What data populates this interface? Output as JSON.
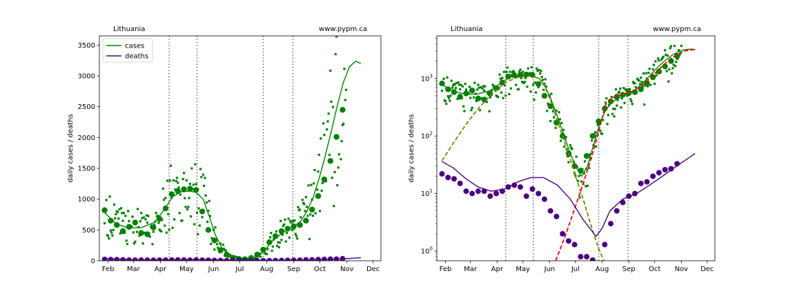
{
  "chart_data": [
    {
      "type": "scatter",
      "location_label": "Lithuania",
      "source_label": "www.pypm.ca",
      "ylabel": "daily cases / deaths",
      "yscale": "linear",
      "ylim": [
        0,
        3650
      ],
      "xlim": [
        "2020-01-22",
        "2020-12-10"
      ],
      "yticks": [
        "0",
        "500",
        "1000",
        "1500",
        "2000",
        "2500",
        "3000",
        "3500"
      ],
      "ytick_values": [
        0,
        500,
        1000,
        1500,
        2000,
        2500,
        3000,
        3500
      ],
      "xtick_labels": [
        "Feb",
        "Mar",
        "Apr",
        "May",
        "Jun",
        "Jul",
        "Aug",
        "Sep",
        "Oct",
        "Nov",
        "Dec"
      ],
      "xtick_dates": [
        "2020-02-01",
        "2020-03-01",
        "2020-04-01",
        "2020-05-01",
        "2020-06-01",
        "2020-07-01",
        "2020-08-01",
        "2020-09-01",
        "2020-10-01",
        "2020-11-01",
        "2020-12-01"
      ],
      "vlines": [
        "2020-04-11",
        "2020-05-13",
        "2020-07-28",
        "2020-08-31"
      ],
      "legend": {
        "placement": "top-left",
        "entries": [
          {
            "label": "cases",
            "color": "#008000"
          },
          {
            "label": "deaths",
            "color": "#4b0082"
          }
        ]
      },
      "series": [
        {
          "name": "cases",
          "kind": "weekly_points",
          "color": "#008000",
          "x": [
            "2020-01-28",
            "2020-02-04",
            "2020-02-11",
            "2020-02-18",
            "2020-02-25",
            "2020-03-03",
            "2020-03-10",
            "2020-03-17",
            "2020-03-24",
            "2020-03-31",
            "2020-04-07",
            "2020-04-14",
            "2020-04-21",
            "2020-04-28",
            "2020-05-05",
            "2020-05-12",
            "2020-05-19",
            "2020-05-26",
            "2020-06-02",
            "2020-06-09",
            "2020-06-16",
            "2020-06-23",
            "2020-06-30",
            "2020-07-07",
            "2020-07-14",
            "2020-07-21",
            "2020-07-28",
            "2020-08-04",
            "2020-08-11",
            "2020-08-18",
            "2020-08-25",
            "2020-09-01",
            "2020-09-08",
            "2020-09-15",
            "2020-09-22",
            "2020-09-29",
            "2020-10-06",
            "2020-10-13",
            "2020-10-20",
            "2020-10-27"
          ],
          "y": [
            820,
            650,
            580,
            480,
            550,
            620,
            450,
            430,
            540,
            680,
            850,
            1080,
            1130,
            1160,
            1170,
            1150,
            800,
            500,
            330,
            170,
            100,
            50,
            30,
            25,
            45,
            100,
            180,
            300,
            400,
            480,
            520,
            560,
            580,
            650,
            830,
            1050,
            1320,
            1620,
            2010,
            2450
          ]
        },
        {
          "name": "cases fit",
          "kind": "line",
          "color": "#008000",
          "x": [
            "2020-01-28",
            "2020-02-10",
            "2020-02-25",
            "2020-03-10",
            "2020-03-25",
            "2020-04-05",
            "2020-04-15",
            "2020-04-25",
            "2020-05-05",
            "2020-05-12",
            "2020-05-20",
            "2020-05-27",
            "2020-06-03",
            "2020-06-10",
            "2020-06-17",
            "2020-06-24",
            "2020-07-01",
            "2020-07-08",
            "2020-07-15",
            "2020-07-22",
            "2020-07-29",
            "2020-08-05",
            "2020-08-12",
            "2020-08-19",
            "2020-08-26",
            "2020-09-02",
            "2020-09-09",
            "2020-09-16",
            "2020-09-23",
            "2020-09-30",
            "2020-10-07",
            "2020-10-14",
            "2020-10-21",
            "2020-10-28",
            "2020-11-04",
            "2020-11-11",
            "2020-11-17"
          ],
          "y": [
            780,
            600,
            530,
            540,
            620,
            820,
            1040,
            1120,
            1130,
            1110,
            1000,
            720,
            420,
            220,
            110,
            55,
            30,
            20,
            30,
            70,
            160,
            280,
            380,
            450,
            510,
            570,
            640,
            800,
            1020,
            1330,
            1700,
            2100,
            2520,
            2900,
            3150,
            3240,
            3200
          ]
        },
        {
          "name": "deaths",
          "kind": "weekly_points",
          "color": "#4b0082",
          "x": [
            "2020-01-28",
            "2020-02-04",
            "2020-02-11",
            "2020-02-18",
            "2020-02-25",
            "2020-03-03",
            "2020-03-10",
            "2020-03-17",
            "2020-03-24",
            "2020-03-31",
            "2020-04-07",
            "2020-04-14",
            "2020-04-21",
            "2020-04-28",
            "2020-05-05",
            "2020-05-12",
            "2020-05-19",
            "2020-05-26",
            "2020-06-02",
            "2020-06-09",
            "2020-06-16",
            "2020-06-23",
            "2020-06-30",
            "2020-07-07",
            "2020-07-14",
            "2020-07-21",
            "2020-07-28",
            "2020-08-04",
            "2020-08-11",
            "2020-08-18",
            "2020-08-25",
            "2020-09-01",
            "2020-09-08",
            "2020-09-15",
            "2020-09-22",
            "2020-09-29",
            "2020-10-06",
            "2020-10-13",
            "2020-10-20",
            "2020-10-27"
          ],
          "y": [
            22,
            19,
            18,
            15,
            11,
            10,
            11,
            11,
            9,
            10,
            11,
            13,
            14,
            13,
            9,
            12,
            10,
            8,
            5,
            4,
            2,
            1.5,
            1.3,
            0.8,
            0.8,
            0.7,
            0.6,
            1.3,
            3,
            5,
            7,
            9,
            10,
            15,
            16,
            20,
            23,
            26,
            27,
            33
          ]
        },
        {
          "name": "deaths fit",
          "kind": "line",
          "color": "#4b0082",
          "x": [
            "2020-01-28",
            "2020-02-10",
            "2020-02-25",
            "2020-03-10",
            "2020-03-25",
            "2020-04-10",
            "2020-04-25",
            "2020-05-10",
            "2020-05-25",
            "2020-06-10",
            "2020-06-25",
            "2020-07-10",
            "2020-07-25",
            "2020-08-01",
            "2020-08-10",
            "2020-08-25",
            "2020-09-10",
            "2020-09-25",
            "2020-10-10",
            "2020-10-25",
            "2020-11-10",
            "2020-11-17"
          ],
          "y": [
            36,
            28,
            18,
            13,
            11,
            12,
            16,
            19,
            19,
            14,
            8,
            3.5,
            1.8,
            2.5,
            5,
            8,
            10,
            14,
            20,
            29,
            42,
            50
          ]
        }
      ]
    },
    {
      "type": "scatter",
      "location_label": "Lithuania",
      "source_label": "www.pypm.ca",
      "ylabel": "daily cases / deaths",
      "yscale": "log",
      "ylim": [
        0.68,
        5500
      ],
      "xlim": [
        "2020-01-22",
        "2020-12-10"
      ],
      "yticks": [
        "10",
        "10",
        "10",
        "10"
      ],
      "ytick_exponents": [
        "0",
        "1",
        "2",
        "3"
      ],
      "ytick_values": [
        1,
        10,
        100,
        1000
      ],
      "xtick_labels": [
        "Feb",
        "Mar",
        "Apr",
        "May",
        "Jun",
        "Jul",
        "Aug",
        "Sep",
        "Oct",
        "Nov",
        "Dec"
      ],
      "xtick_dates": [
        "2020-02-01",
        "2020-03-01",
        "2020-04-01",
        "2020-05-01",
        "2020-06-01",
        "2020-07-01",
        "2020-08-01",
        "2020-09-01",
        "2020-10-01",
        "2020-11-01",
        "2020-12-01"
      ],
      "vlines": [
        "2020-04-11",
        "2020-05-13",
        "2020-07-28",
        "2020-08-31"
      ],
      "series": [
        {
          "name": "cases",
          "kind": "weekly_points",
          "color": "#008000",
          "x": [
            "2020-01-28",
            "2020-02-04",
            "2020-02-11",
            "2020-02-18",
            "2020-02-25",
            "2020-03-03",
            "2020-03-10",
            "2020-03-17",
            "2020-03-24",
            "2020-03-31",
            "2020-04-07",
            "2020-04-14",
            "2020-04-21",
            "2020-04-28",
            "2020-05-05",
            "2020-05-12",
            "2020-05-19",
            "2020-05-26",
            "2020-06-02",
            "2020-06-09",
            "2020-06-16",
            "2020-06-23",
            "2020-06-30",
            "2020-07-07",
            "2020-07-14",
            "2020-07-21",
            "2020-07-28",
            "2020-08-04",
            "2020-08-11",
            "2020-08-18",
            "2020-08-25",
            "2020-09-01",
            "2020-09-08",
            "2020-09-15",
            "2020-09-22",
            "2020-09-29",
            "2020-10-06",
            "2020-10-13",
            "2020-10-20",
            "2020-10-27"
          ],
          "y": [
            820,
            650,
            580,
            480,
            550,
            620,
            450,
            430,
            540,
            680,
            850,
            1080,
            1130,
            1160,
            1170,
            1150,
            800,
            500,
            330,
            170,
            100,
            50,
            30,
            25,
            45,
            100,
            180,
            300,
            400,
            480,
            520,
            560,
            580,
            650,
            830,
            1050,
            1320,
            1620,
            2010,
            2450
          ]
        },
        {
          "name": "cases fit",
          "kind": "line",
          "color": "#008000",
          "x": [
            "2020-01-28",
            "2020-02-10",
            "2020-02-25",
            "2020-03-10",
            "2020-03-25",
            "2020-04-05",
            "2020-04-15",
            "2020-04-25",
            "2020-05-05",
            "2020-05-12",
            "2020-05-20",
            "2020-05-27",
            "2020-06-03",
            "2020-06-10",
            "2020-06-17",
            "2020-06-24",
            "2020-07-01",
            "2020-07-08",
            "2020-07-15",
            "2020-07-22",
            "2020-07-29",
            "2020-08-05",
            "2020-08-12",
            "2020-08-19",
            "2020-08-26",
            "2020-09-02",
            "2020-09-09",
            "2020-09-16",
            "2020-09-23",
            "2020-09-30",
            "2020-10-07",
            "2020-10-14",
            "2020-10-21",
            "2020-10-28",
            "2020-11-04",
            "2020-11-11",
            "2020-11-17"
          ],
          "y": [
            780,
            600,
            530,
            540,
            620,
            820,
            1040,
            1120,
            1130,
            1110,
            1000,
            720,
            420,
            220,
            110,
            55,
            30,
            20,
            30,
            70,
            160,
            280,
            380,
            450,
            510,
            570,
            640,
            800,
            1020,
            1330,
            1700,
            2100,
            2520,
            2900,
            3150,
            3240,
            3200
          ]
        },
        {
          "name": "first wave component",
          "kind": "dashed",
          "color": "#808000",
          "x": [
            "2020-01-28",
            "2020-02-10",
            "2020-02-25",
            "2020-03-10",
            "2020-03-25",
            "2020-04-10",
            "2020-04-25",
            "2020-05-10",
            "2020-05-20",
            "2020-05-27",
            "2020-06-03",
            "2020-06-10",
            "2020-06-17",
            "2020-06-24",
            "2020-07-01",
            "2020-07-10",
            "2020-07-20",
            "2020-07-28",
            "2020-08-03"
          ],
          "y": [
            37,
            75,
            160,
            300,
            520,
            850,
            1050,
            1100,
            1000,
            700,
            380,
            180,
            90,
            45,
            20,
            8,
            2.5,
            1.1,
            0.68
          ]
        },
        {
          "name": "second wave component",
          "kind": "dashed",
          "color": "#ff0000",
          "x": [
            "2020-06-08",
            "2020-06-20",
            "2020-07-01",
            "2020-07-10",
            "2020-07-20",
            "2020-07-28",
            "2020-08-05",
            "2020-08-15",
            "2020-08-25",
            "2020-09-05",
            "2020-09-20",
            "2020-10-05",
            "2020-10-20",
            "2020-11-04",
            "2020-11-17"
          ],
          "y": [
            0.68,
            2,
            6,
            15,
            45,
            120,
            350,
            480,
            530,
            600,
            830,
            1400,
            2250,
            3000,
            3200
          ]
        },
        {
          "name": "deaths",
          "kind": "weekly_points",
          "color": "#4b0082",
          "x": [
            "2020-01-28",
            "2020-02-04",
            "2020-02-11",
            "2020-02-18",
            "2020-02-25",
            "2020-03-03",
            "2020-03-10",
            "2020-03-17",
            "2020-03-24",
            "2020-03-31",
            "2020-04-07",
            "2020-04-14",
            "2020-04-21",
            "2020-04-28",
            "2020-05-05",
            "2020-05-12",
            "2020-05-19",
            "2020-05-26",
            "2020-06-02",
            "2020-06-09",
            "2020-06-16",
            "2020-06-23",
            "2020-06-30",
            "2020-07-07",
            "2020-07-14",
            "2020-07-21",
            "2020-07-28",
            "2020-08-04",
            "2020-08-11",
            "2020-08-18",
            "2020-08-25",
            "2020-09-01",
            "2020-09-08",
            "2020-09-15",
            "2020-09-22",
            "2020-09-29",
            "2020-10-06",
            "2020-10-13",
            "2020-10-20",
            "2020-10-27"
          ],
          "y": [
            22,
            19,
            18,
            15,
            11,
            10,
            11,
            11,
            9,
            10,
            11,
            13,
            14,
            13,
            9,
            12,
            10,
            8,
            5,
            4,
            2,
            1.5,
            1.3,
            0.8,
            0.8,
            0.7,
            0.6,
            1.3,
            3,
            5,
            7,
            9,
            10,
            15,
            16,
            20,
            23,
            26,
            27,
            33
          ]
        },
        {
          "name": "deaths fit",
          "kind": "line",
          "color": "#4b0082",
          "x": [
            "2020-01-28",
            "2020-02-10",
            "2020-02-25",
            "2020-03-10",
            "2020-03-25",
            "2020-04-10",
            "2020-04-25",
            "2020-05-10",
            "2020-05-25",
            "2020-06-10",
            "2020-06-25",
            "2020-07-10",
            "2020-07-25",
            "2020-08-01",
            "2020-08-10",
            "2020-08-25",
            "2020-09-10",
            "2020-09-25",
            "2020-10-10",
            "2020-10-25",
            "2020-11-10",
            "2020-11-17"
          ],
          "y": [
            36,
            28,
            18,
            13,
            11,
            12,
            16,
            19,
            19,
            14,
            8,
            3.5,
            1.8,
            2.5,
            5,
            8,
            10,
            14,
            20,
            29,
            42,
            50
          ]
        }
      ]
    }
  ]
}
